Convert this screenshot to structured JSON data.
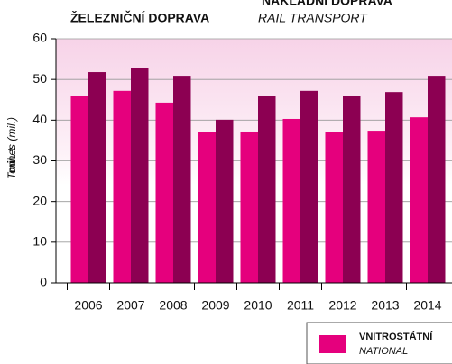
{
  "chart_data": {
    "type": "bar",
    "header": "NÁKLADNÍ DOPRAVA",
    "title": "ŽELEZNIČNÍ DOPRAVA",
    "subtitle": "RAIL TRANSPORT",
    "ylabel": "mil. t",
    "ylabel_en": "Tonnes (mil.)",
    "categories": [
      "2006",
      "2007",
      "2008",
      "2009",
      "2010",
      "2011",
      "2012",
      "2013",
      "2014"
    ],
    "series": [
      {
        "name": "VNITROSTÁTNÍ",
        "name_en": "NATIONAL",
        "color": "#e5007d",
        "values": [
          46.0,
          47.2,
          44.3,
          37.0,
          37.2,
          40.3,
          37.0,
          37.4,
          40.7
        ]
      },
      {
        "color": "#8c0052",
        "values": [
          51.8,
          52.9,
          50.9,
          40.1,
          46.0,
          47.2,
          46.0,
          46.9,
          50.9
        ]
      }
    ],
    "ylim": [
      0,
      60
    ],
    "yticks": [
      0,
      10,
      20,
      30,
      40,
      50,
      60
    ],
    "grid": true
  }
}
